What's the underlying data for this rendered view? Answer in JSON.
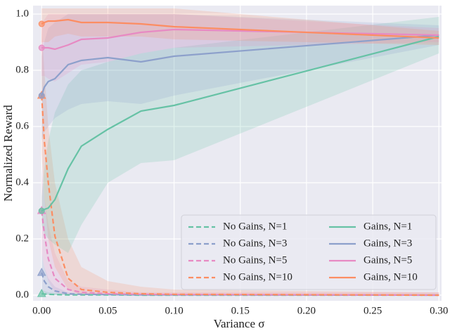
{
  "chart_data": {
    "type": "line",
    "xlabel": "Variance σ",
    "ylabel": "Normalized Reward",
    "x": [
      0,
      0.002,
      0.005,
      0.01,
      0.02,
      0.03,
      0.05,
      0.075,
      0.1,
      0.3
    ],
    "xlim": [
      -0.0065,
      0.302
    ],
    "ylim": [
      -0.02,
      1.03
    ],
    "xticks": [
      {
        "value": 0,
        "label": "0.00"
      },
      {
        "value": 0.05,
        "label": "0.05"
      },
      {
        "value": 0.1,
        "label": "0.10"
      },
      {
        "value": 0.15,
        "label": "0.15"
      },
      {
        "value": 0.2,
        "label": "0.20"
      },
      {
        "value": 0.25,
        "label": "0.25"
      },
      {
        "value": 0.3,
        "label": "0.30"
      }
    ],
    "yticks": [
      {
        "value": 0,
        "label": "0.0"
      },
      {
        "value": 0.2,
        "label": "0.2"
      },
      {
        "value": 0.4,
        "label": "0.4"
      },
      {
        "value": 0.6,
        "label": "0.6"
      },
      {
        "value": 0.8,
        "label": "0.8"
      },
      {
        "value": 1,
        "label": "1.0"
      }
    ],
    "grid": true,
    "legend_position": "lower right",
    "series": [
      {
        "name": "No Gains, N=1",
        "color": "#66c2a5",
        "dashed": true,
        "marker": "triangle",
        "values": [
          0.005,
          0.004,
          0.003,
          0.002,
          0.001,
          0.001,
          0.001,
          0,
          0,
          0
        ],
        "lower": [
          0,
          0,
          0,
          0,
          0,
          0,
          0,
          0,
          0,
          0
        ],
        "upper": [
          0.02,
          0.015,
          0.01,
          0.008,
          0.005,
          0.004,
          0.003,
          0.002,
          0.002,
          0.001
        ]
      },
      {
        "name": "No Gains, N=3",
        "color": "#8da0cb",
        "dashed": true,
        "marker": "triangle",
        "values": [
          0.08,
          0.05,
          0.03,
          0.015,
          0.005,
          0.003,
          0.002,
          0.001,
          0.001,
          0
        ],
        "lower": [
          0.02,
          0.01,
          0,
          0,
          0,
          0,
          0,
          0,
          0,
          0
        ],
        "upper": [
          0.15,
          0.1,
          0.06,
          0.03,
          0.01,
          0.008,
          0.005,
          0.004,
          0.003,
          0.002
        ]
      },
      {
        "name": "No Gains, N=5",
        "color": "#e78ac3",
        "dashed": true,
        "marker": "triangle",
        "values": [
          0.3,
          0.22,
          0.13,
          0.06,
          0.02,
          0.01,
          0.005,
          0.003,
          0.002,
          0
        ],
        "lower": [
          0.15,
          0.1,
          0.05,
          0.01,
          0,
          0,
          0,
          0,
          0,
          0
        ],
        "upper": [
          0.45,
          0.35,
          0.25,
          0.15,
          0.05,
          0.03,
          0.02,
          0.01,
          0.01,
          0.01
        ]
      },
      {
        "name": "No Gains, N=10",
        "color": "#fc8d62",
        "dashed": true,
        "marker": "triangle",
        "values": [
          0.71,
          0.55,
          0.4,
          0.21,
          0.06,
          0.02,
          0.01,
          0.005,
          0.003,
          0
        ],
        "lower": [
          0.5,
          0.35,
          0.2,
          0.1,
          0.02,
          0,
          0,
          0,
          0,
          0
        ],
        "upper": [
          0.95,
          0.8,
          0.6,
          0.4,
          0.2,
          0.1,
          0.05,
          0.03,
          0.02,
          0.01
        ]
      },
      {
        "name": "Gains, N=1",
        "color": "#66c2a5",
        "dashed": false,
        "marker": "circle",
        "values": [
          0.3,
          0.305,
          0.31,
          0.34,
          0.45,
          0.53,
          0.59,
          0.655,
          0.675,
          0.92
        ],
        "lower": [
          0.25,
          0.22,
          0.2,
          0.18,
          0.15,
          0.25,
          0.4,
          0.47,
          0.48,
          0.86
        ],
        "upper": [
          0.35,
          0.45,
          0.55,
          0.65,
          0.75,
          0.8,
          0.83,
          0.86,
          0.88,
          0.99
        ]
      },
      {
        "name": "Gains, N=3",
        "color": "#8da0cb",
        "dashed": false,
        "marker": "circle",
        "values": [
          0.71,
          0.74,
          0.76,
          0.77,
          0.82,
          0.835,
          0.845,
          0.83,
          0.85,
          0.925
        ],
        "lower": [
          0.55,
          0.58,
          0.6,
          0.63,
          0.66,
          0.68,
          0.69,
          0.68,
          0.71,
          0.89
        ],
        "upper": [
          0.85,
          0.9,
          0.95,
          0.97,
          1,
          1,
          1,
          1,
          1,
          0.96
        ]
      },
      {
        "name": "Gains, N=5",
        "color": "#e78ac3",
        "dashed": false,
        "marker": "circle",
        "values": [
          0.88,
          0.88,
          0.88,
          0.875,
          0.89,
          0.91,
          0.915,
          0.935,
          0.945,
          0.925
        ],
        "lower": [
          0.78,
          0.78,
          0.77,
          0.76,
          0.79,
          0.82,
          0.83,
          0.86,
          0.88,
          0.9
        ],
        "upper": [
          0.97,
          0.98,
          1,
          1,
          1,
          1,
          1,
          1,
          1,
          0.95
        ]
      },
      {
        "name": "Gains, N=10",
        "color": "#fc8d62",
        "dashed": false,
        "marker": "circle",
        "values": [
          0.965,
          0.97,
          0.975,
          0.975,
          0.98,
          0.97,
          0.97,
          0.965,
          0.955,
          0.915
        ],
        "lower": [
          0.9,
          0.9,
          0.9,
          0.92,
          0.93,
          0.92,
          0.92,
          0.92,
          0.91,
          0.89
        ],
        "upper": [
          1.02,
          1.02,
          1.02,
          1.02,
          1.02,
          1.02,
          1.02,
          1.02,
          1.02,
          0.94
        ]
      }
    ]
  }
}
